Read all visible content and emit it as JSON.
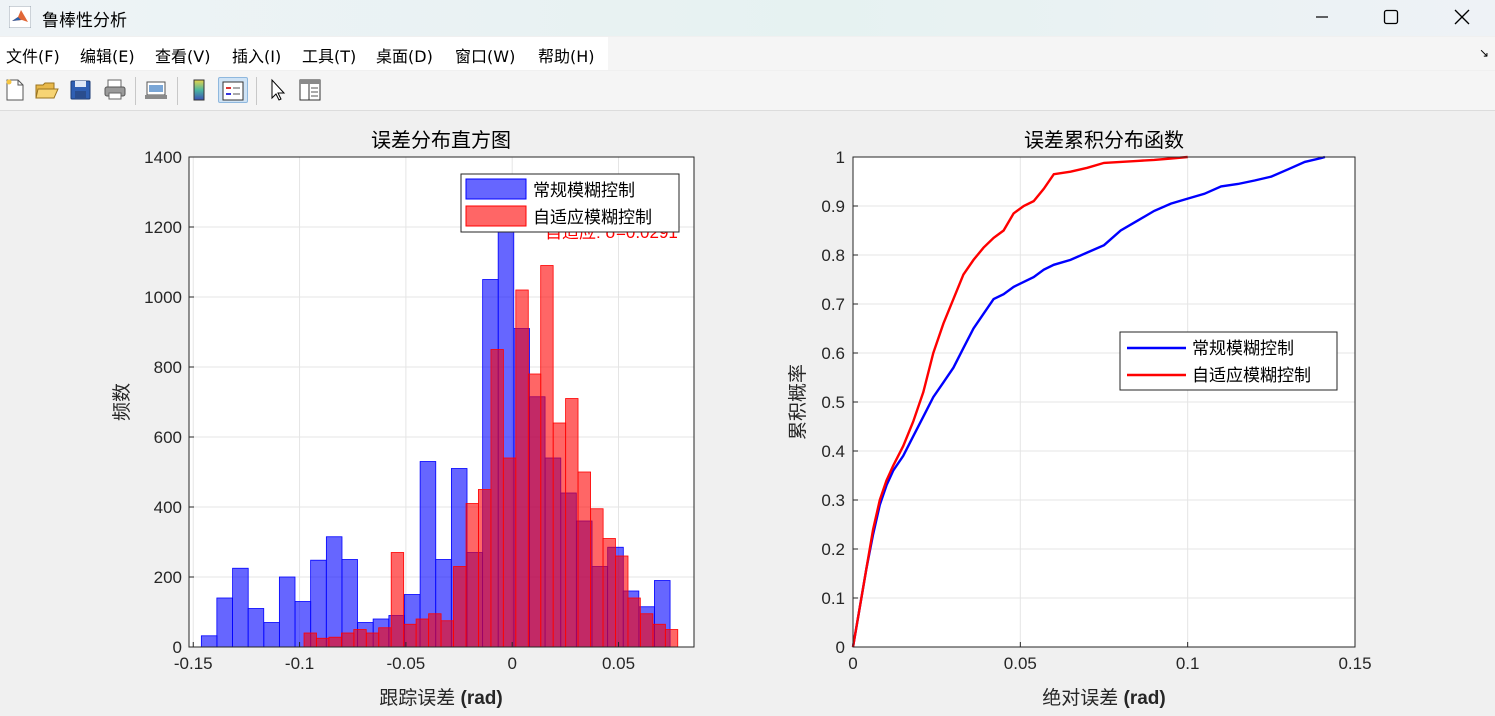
{
  "window": {
    "title": "鲁棒性分析"
  },
  "menu": {
    "items": [
      "文件(F)",
      "编辑(E)",
      "查看(V)",
      "插入(I)",
      "工具(T)",
      "桌面(D)",
      "窗口(W)",
      "帮助(H)"
    ]
  },
  "toolbar": {
    "icons": [
      "new-figure",
      "open-file",
      "save",
      "print",
      "link-plot",
      "colorbar",
      "legend",
      "pointer",
      "property-editor"
    ]
  },
  "chart_data": [
    {
      "type": "bar",
      "title": "误差分布直方图",
      "xlabel_main": "跟踪误差 ",
      "xlabel_unit": "(rad)",
      "ylabel": "频数",
      "xlim": [
        -0.152,
        0.0855
      ],
      "ylim": [
        0,
        1400
      ],
      "xticks": [
        -0.15,
        -0.1,
        -0.05,
        0,
        0.05
      ],
      "xtick_labels": [
        "-0.15",
        "-0.1",
        "-0.05",
        "0",
        "0.05"
      ],
      "yticks": [
        0,
        200,
        400,
        600,
        800,
        1000,
        1200,
        1400
      ],
      "grid": true,
      "legend_position": "top-right",
      "annotation": "自适应: σ=0.0291",
      "annotation_color": "#ff0000",
      "series": [
        {
          "name": "常规模糊控制",
          "color": "#0000ff",
          "bin_width": 0.00735,
          "bin_starts": [
            -0.1462,
            -0.1389,
            -0.1315,
            -0.1242,
            -0.1168,
            -0.1095,
            -0.1021,
            -0.0948,
            -0.0874,
            -0.0801,
            -0.0727,
            -0.0654,
            -0.058,
            -0.0507,
            -0.0433,
            -0.036,
            -0.0286,
            -0.0213,
            -0.0139,
            -0.0066,
            0.0008,
            0.0081,
            0.0155,
            0.0228,
            0.0302,
            0.0375,
            0.0449,
            0.0522,
            0.0596,
            0.0669
          ],
          "values": [
            32,
            140,
            225,
            110,
            70,
            200,
            130,
            248,
            315,
            250,
            70,
            80,
            90,
            150,
            530,
            250,
            510,
            270,
            1050,
            1200,
            910,
            715,
            540,
            440,
            360,
            230,
            285,
            160,
            115,
            190
          ]
        },
        {
          "name": "自适应模糊控制",
          "color": "#ff0000",
          "bin_width": 0.00586,
          "bin_starts": [
            -0.0979,
            -0.0921,
            -0.0862,
            -0.0803,
            -0.0745,
            -0.0686,
            -0.0628,
            -0.0569,
            -0.051,
            -0.0452,
            -0.0393,
            -0.0335,
            -0.0276,
            -0.0217,
            -0.0159,
            -0.01,
            -0.0042,
            0.0017,
            0.0076,
            0.0134,
            0.0193,
            0.0251,
            0.031,
            0.0369,
            0.0427,
            0.0486,
            0.0544,
            0.0603,
            0.0662,
            0.072
          ],
          "values": [
            40,
            25,
            28,
            40,
            50,
            40,
            55,
            270,
            65,
            80,
            95,
            75,
            230,
            410,
            450,
            850,
            540,
            1020,
            780,
            1090,
            640,
            710,
            500,
            395,
            310,
            260,
            140,
            95,
            65,
            50
          ]
        }
      ]
    },
    {
      "type": "line",
      "title": "误差累积分布函数",
      "xlabel_main": "绝对误差 ",
      "xlabel_unit": "(rad)",
      "ylabel": "累积概率",
      "xlim": [
        0,
        0.15
      ],
      "ylim": [
        0,
        1
      ],
      "xticks": [
        0,
        0.05,
        0.1,
        0.15
      ],
      "xtick_labels": [
        "0",
        "0.05",
        "0.1",
        "0.15"
      ],
      "yticks": [
        0,
        0.1,
        0.2,
        0.3,
        0.4,
        0.5,
        0.6,
        0.7,
        0.8,
        0.9,
        1
      ],
      "ytick_labels": [
        "0",
        "0.1",
        "0.2",
        "0.3",
        "0.4",
        "0.5",
        "0.6",
        "0.7",
        "0.8",
        "0.9",
        "1"
      ],
      "grid": true,
      "legend_position": "center-right",
      "series": [
        {
          "name": "常规模糊控制",
          "color": "#0000ff",
          "x": [
            0,
            0.002,
            0.004,
            0.006,
            0.008,
            0.01,
            0.012,
            0.015,
            0.018,
            0.021,
            0.024,
            0.027,
            0.03,
            0.033,
            0.036,
            0.039,
            0.042,
            0.045,
            0.048,
            0.051,
            0.054,
            0.057,
            0.06,
            0.065,
            0.07,
            0.075,
            0.08,
            0.085,
            0.09,
            0.095,
            0.1,
            0.105,
            0.11,
            0.115,
            0.12,
            0.125,
            0.13,
            0.135,
            0.14,
            0.141
          ],
          "y": [
            0,
            0.08,
            0.16,
            0.23,
            0.29,
            0.33,
            0.36,
            0.39,
            0.43,
            0.47,
            0.51,
            0.54,
            0.57,
            0.61,
            0.65,
            0.68,
            0.71,
            0.72,
            0.735,
            0.745,
            0.755,
            0.77,
            0.78,
            0.79,
            0.805,
            0.82,
            0.85,
            0.87,
            0.89,
            0.905,
            0.915,
            0.925,
            0.94,
            0.945,
            0.952,
            0.96,
            0.975,
            0.99,
            0.998,
            1.0
          ]
        },
        {
          "name": "自适应模糊控制",
          "color": "#ff0000",
          "x": [
            0,
            0.002,
            0.004,
            0.006,
            0.008,
            0.01,
            0.012,
            0.015,
            0.018,
            0.021,
            0.024,
            0.027,
            0.03,
            0.033,
            0.036,
            0.039,
            0.042,
            0.045,
            0.048,
            0.051,
            0.054,
            0.057,
            0.06,
            0.065,
            0.07,
            0.075,
            0.08,
            0.085,
            0.09,
            0.095,
            0.1
          ],
          "y": [
            0,
            0.08,
            0.16,
            0.24,
            0.3,
            0.34,
            0.37,
            0.41,
            0.46,
            0.52,
            0.6,
            0.66,
            0.71,
            0.76,
            0.79,
            0.815,
            0.835,
            0.85,
            0.885,
            0.9,
            0.91,
            0.935,
            0.965,
            0.97,
            0.978,
            0.988,
            0.99,
            0.992,
            0.994,
            0.997,
            1.0
          ]
        }
      ]
    }
  ]
}
